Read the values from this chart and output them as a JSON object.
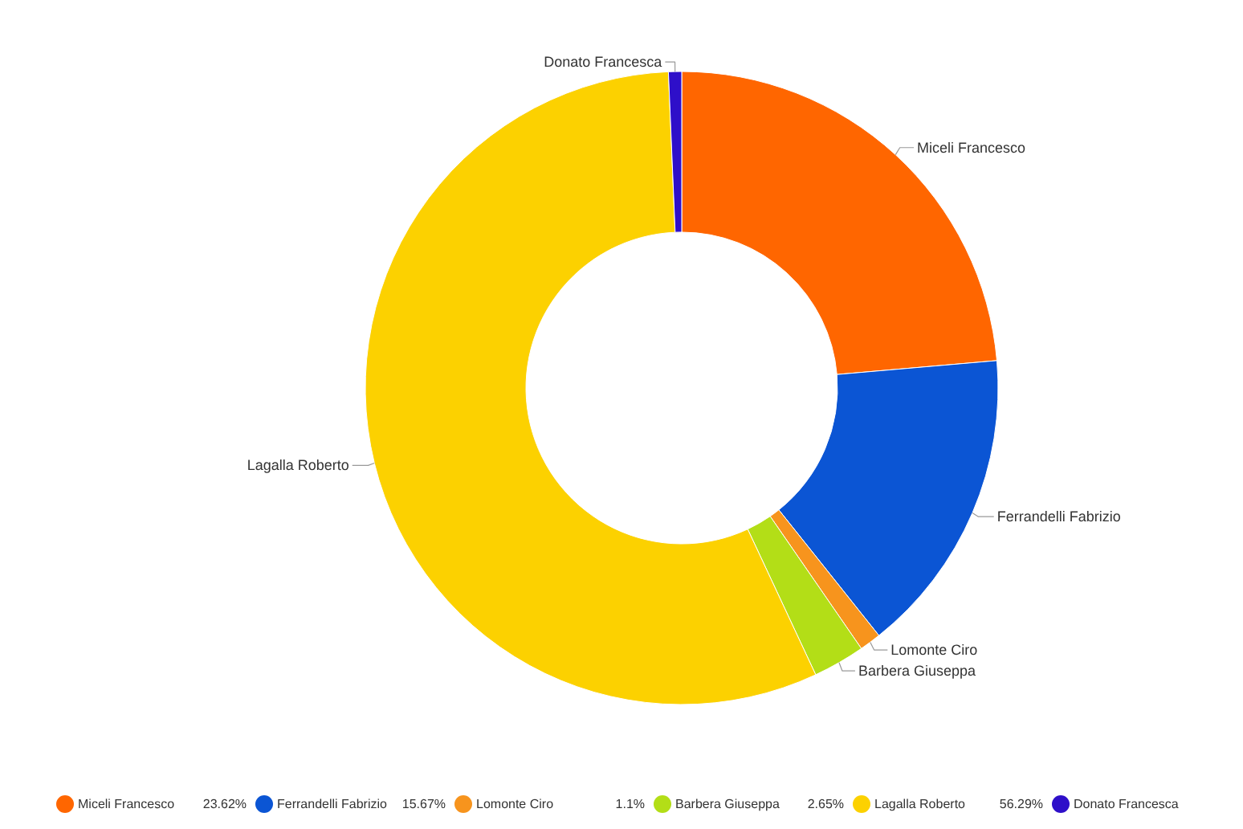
{
  "chart_data": {
    "type": "donut",
    "categories": [
      "Miceli Francesco",
      "Ferrandelli Fabrizio",
      "Lomonte Ciro",
      "Barbera Giuseppa",
      "Lagalla Roberto",
      "Donato Francesca"
    ],
    "values": [
      23.62,
      15.67,
      1.1,
      2.65,
      56.29,
      0.67
    ],
    "colors": [
      "#ff6600",
      "#0b55d4",
      "#f7941d",
      "#b3de17",
      "#fcd100",
      "#2e0fc9"
    ],
    "value_labels": [
      "23.62%",
      "15.67%",
      "1.1%",
      "2.65%",
      "56.29%",
      null
    ],
    "legend": "bottom"
  }
}
